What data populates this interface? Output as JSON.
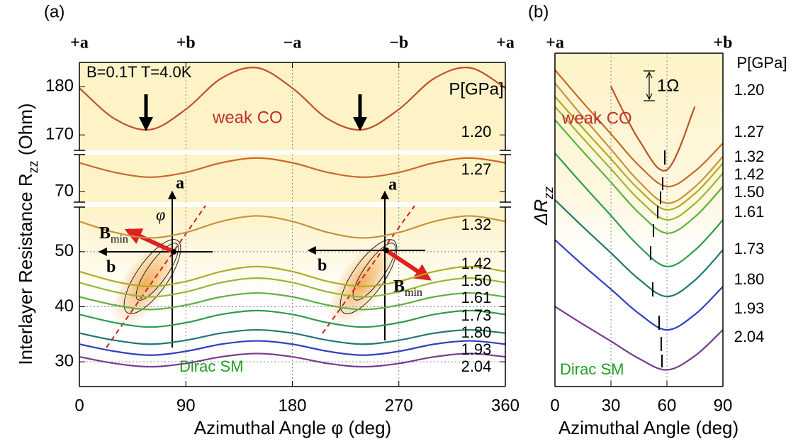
{
  "chart_data": [
    {
      "type": "line",
      "panel_label": "(a)",
      "x": [
        0,
        30,
        60,
        90,
        120,
        150,
        180,
        210,
        240,
        270,
        300,
        330,
        360
      ],
      "xlim": [
        0,
        360
      ],
      "xticks": [
        0,
        90,
        180,
        270,
        360
      ],
      "x2ticks": [
        {
          "value": 0,
          "label": "+a"
        },
        {
          "value": 90,
          "label": "+b"
        },
        {
          "value": 180,
          "label": "−a"
        },
        {
          "value": 270,
          "label": "−b"
        },
        {
          "value": 360,
          "label": "+a"
        }
      ],
      "x_label": "Azimuthal Angle φ (deg)",
      "y_label": {
        "text": "Interlayer Resistance R",
        "sub": "zz",
        "unit": " (Ohm)"
      },
      "grid": true,
      "legend_title": "P[GPa]",
      "annotations": {
        "conditions": "B=0.1T T=4.0K",
        "weak": "weak CO",
        "dirac": "Dirac SM"
      },
      "insets": [
        {
          "a": "a",
          "b": "b",
          "phi": "φ",
          "B": "B",
          "min": "min"
        },
        {
          "a": "a",
          "b": "b",
          "B": "B",
          "min": "min"
        }
      ],
      "segments": [
        {
          "ylim": [
            166.8,
            185
          ],
          "yticks": [
            170,
            180
          ],
          "series": [
            {
              "name": "1.20",
              "color": "#c0502a",
              "values": [
                179.7,
                173.3,
                171.1,
                175.3,
                181.7,
                183.9,
                179.7,
                173.3,
                171.1,
                175.3,
                181.7,
                183.9,
                179.7
              ]
            }
          ]
        },
        {
          "ylim": [
            67.8,
            77.7
          ],
          "yticks": [
            70
          ],
          "series": [
            {
              "name": "1.27",
              "color": "#c86a2a",
              "values": [
                76.0,
                74.0,
                73.0,
                74.0,
                76.0,
                77.0,
                76.0,
                74.0,
                73.0,
                74.0,
                76.0,
                77.0,
                76.0
              ]
            }
          ]
        },
        {
          "ylim": [
            25.5,
            58.1
          ],
          "yticks": [
            30,
            40,
            50
          ],
          "series": [
            {
              "name": "1.32",
              "color": "#c8923a",
              "values": [
                55.5,
                53.5,
                52.5,
                53.5,
                55.5,
                56.5,
                55.5,
                53.5,
                52.5,
                53.5,
                55.5,
                56.5,
                55.5
              ]
            },
            {
              "name": "1.42",
              "color": "#b4aa20",
              "values": [
                46.4,
                44.6,
                43.7,
                44.6,
                46.4,
                47.3,
                46.4,
                44.6,
                43.7,
                44.6,
                46.4,
                47.3,
                46.4
              ]
            },
            {
              "name": "1.50",
              "color": "#98b830",
              "values": [
                44.4,
                42.7,
                41.8,
                42.7,
                44.4,
                45.2,
                44.4,
                42.7,
                41.8,
                42.7,
                44.4,
                45.2,
                44.4
              ]
            },
            {
              "name": "1.61",
              "color": "#60b040",
              "values": [
                41.8,
                40.3,
                39.5,
                40.3,
                41.8,
                42.5,
                41.8,
                40.3,
                39.5,
                40.3,
                41.8,
                42.5,
                41.8
              ]
            },
            {
              "name": "1.73",
              "color": "#2c9c50",
              "values": [
                38.6,
                37.1,
                36.3,
                37.1,
                38.6,
                39.3,
                38.6,
                37.1,
                36.3,
                37.1,
                38.6,
                39.3,
                38.6
              ]
            },
            {
              "name": "1.80",
              "color": "#207870",
              "values": [
                35.2,
                33.9,
                33.2,
                33.9,
                35.2,
                35.8,
                35.2,
                33.9,
                33.2,
                33.9,
                35.2,
                35.8,
                35.2
              ]
            },
            {
              "name": "1.93",
              "color": "#3040c0",
              "values": [
                33.2,
                31.9,
                31.2,
                31.9,
                33.2,
                33.8,
                33.2,
                31.9,
                31.2,
                31.9,
                33.2,
                33.8,
                33.2
              ]
            },
            {
              "name": "2.04",
              "color": "#7a3a90",
              "values": [
                30.9,
                29.7,
                29.1,
                29.7,
                30.9,
                31.5,
                30.9,
                29.7,
                29.1,
                29.7,
                30.9,
                31.5,
                30.9
              ]
            }
          ]
        }
      ]
    },
    {
      "type": "line",
      "panel_label": "(b)",
      "x": [
        0,
        15,
        30,
        45,
        60,
        75,
        90
      ],
      "xlim": [
        0,
        90
      ],
      "xticks": [
        0,
        30,
        60,
        90
      ],
      "x2ticks": [
        {
          "value": 0,
          "label": "+a"
        },
        {
          "value": 90,
          "label": "+b"
        }
      ],
      "x_label": "Azimuthal Angle (deg)",
      "y_label": {
        "text": "ΔR",
        "sub": "zz"
      },
      "ylim": [
        0,
        100
      ],
      "grid": true,
      "legend_title": "P[GPa]",
      "annotations": {
        "weak": "weak CO",
        "dirac": "Dirac SM",
        "scale": "1Ω"
      },
      "series": [
        {
          "name": "1.20",
          "color": "#c0502a",
          "values": [
            null,
            null,
            90,
            74,
            65,
            84,
            null
          ]
        },
        {
          "name": "1.27",
          "color": "#c86a2a",
          "values": [
            95,
            85.2,
            75.8,
            66.3,
            60,
            64.6,
            73
          ]
        },
        {
          "name": "1.32",
          "color": "#c8923a",
          "values": [
            91,
            80.9,
            71.2,
            61.5,
            55,
            59.9,
            69
          ]
        },
        {
          "name": "1.42",
          "color": "#b4aa20",
          "values": [
            87,
            77.5,
            68.3,
            59.1,
            53,
            57.9,
            67
          ]
        },
        {
          "name": "1.50",
          "color": "#98b830",
          "values": [
            84,
            74.5,
            65.3,
            56.1,
            50,
            54.9,
            64
          ]
        },
        {
          "name": "1.61",
          "color": "#60b040",
          "values": [
            80,
            70.5,
            61.3,
            52.1,
            46,
            50.9,
            60
          ]
        },
        {
          "name": "1.73",
          "color": "#2c9c50",
          "values": [
            70,
            60.5,
            51.3,
            42.1,
            36,
            40.9,
            50
          ]
        },
        {
          "name": "1.80",
          "color": "#207870",
          "values": [
            56,
            47.9,
            40.1,
            32.2,
            27,
            31.9,
            41
          ]
        },
        {
          "name": "1.93",
          "color": "#3040c0",
          "values": [
            44,
            36.4,
            29.2,
            21.9,
            17,
            21.6,
            30
          ]
        },
        {
          "name": "2.04",
          "color": "#7a3a90",
          "values": [
            24,
            18.7,
            13.6,
            8.4,
            5,
            9.2,
            17
          ]
        }
      ]
    }
  ]
}
